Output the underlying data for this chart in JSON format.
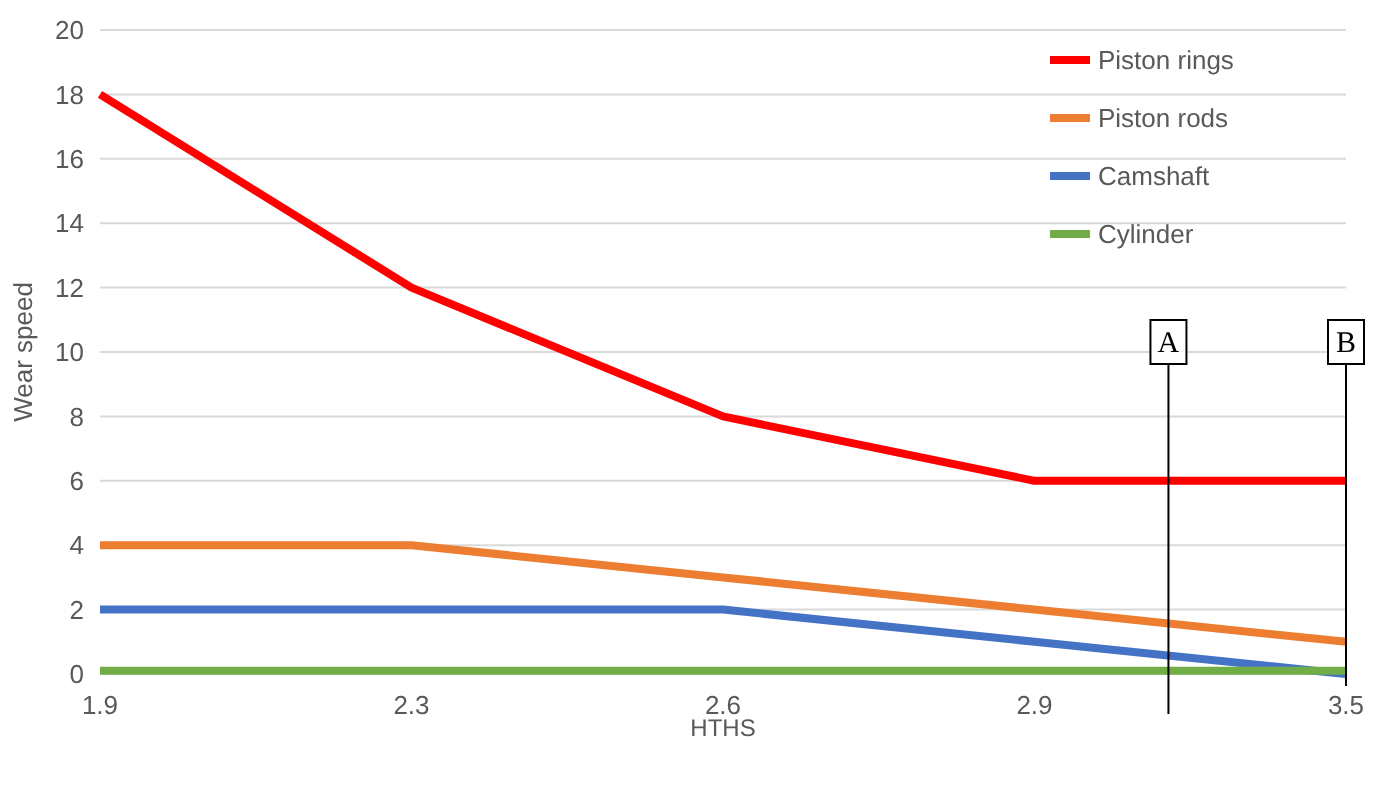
{
  "chart_data": {
    "type": "line",
    "xlabel": "HTHS",
    "ylabel": "Wear speed",
    "categories": [
      "1.9",
      "2.3",
      "2.6",
      "2.9",
      "3.5"
    ],
    "series": [
      {
        "name": "Piston rings",
        "color": "#ff0000",
        "values": [
          18,
          12,
          8,
          6,
          6
        ]
      },
      {
        "name": "Piston rods",
        "color": "#ed7d31",
        "values": [
          4,
          4,
          3,
          2,
          1
        ]
      },
      {
        "name": "Camshaft",
        "color": "#4472c4",
        "values": [
          2,
          2,
          2,
          1,
          0
        ]
      },
      {
        "name": "Cylinder",
        "color": "#70ad47",
        "values": [
          0.1,
          0.1,
          0.1,
          0.1,
          0.1
        ]
      }
    ],
    "ylim": [
      0,
      20
    ],
    "yticks": [
      0,
      2,
      4,
      6,
      8,
      10,
      12,
      14,
      16,
      18,
      20
    ],
    "grid": "y",
    "legend": "top right",
    "marker": "none",
    "line_style": "solid",
    "ref_lines": [
      {
        "axis": "x",
        "value": "3.5",
        "label": "B",
        "color": "#000000"
      }
    ],
    "annotations": [
      "A"
    ]
  }
}
